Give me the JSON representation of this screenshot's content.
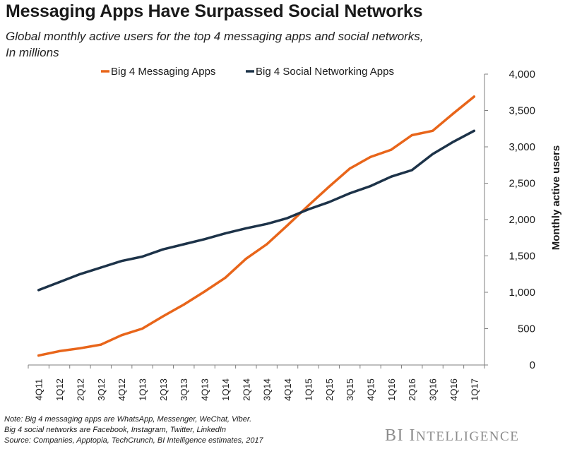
{
  "header": {
    "title": "Messaging Apps Have Surpassed Social Networks",
    "subtitle_line1": "Global monthly active users for the top 4 messaging apps and social networks,",
    "subtitle_line2": "In millions"
  },
  "footer": {
    "note1": "Note: Big 4 messaging apps are WhatsApp, Messenger, WeChat, Viber.",
    "note2": "Big 4 social networks are Facebook, Instagram, Twitter, LinkedIn",
    "source": "Source: Companies,  Apptopia, TechCrunch,  BI Intelligence estimates, 2017",
    "brand_bi": "BI ",
    "brand_i": "I",
    "brand_rest": "NTELLIGENCE"
  },
  "colors": {
    "messaging": "#E8651A",
    "social": "#1D3349",
    "axis": "#7f7f7f",
    "brand": "#8c8c8c"
  },
  "chart_data": {
    "type": "line",
    "title": "",
    "xlabel": "",
    "ylabel": "Monthly active users",
    "ylim": [
      0,
      4000
    ],
    "yticks": [
      "0",
      "500",
      "1,000",
      "1,500",
      "2,000",
      "2,500",
      "3,000",
      "3,500",
      "4,000"
    ],
    "ytick_values": [
      0,
      500,
      1000,
      1500,
      2000,
      2500,
      3000,
      3500,
      4000
    ],
    "grid": false,
    "legend_position": "top",
    "categories": [
      "4Q11",
      "1Q12",
      "2Q12",
      "3Q12",
      "4Q12",
      "1Q13",
      "2Q13",
      "3Q13",
      "4Q13",
      "1Q14",
      "2Q14",
      "3Q14",
      "4Q14",
      "1Q15",
      "2Q15",
      "3Q15",
      "4Q15",
      "1Q16",
      "2Q16",
      "3Q16",
      "4Q16",
      "1Q17"
    ],
    "series": [
      {
        "name": "Big 4 Messaging Apps",
        "color": "#E8651A",
        "values": [
          130,
          190,
          230,
          280,
          410,
          500,
          670,
          830,
          1010,
          1200,
          1460,
          1660,
          1920,
          2190,
          2450,
          2700,
          2860,
          2960,
          3160,
          3220,
          3460,
          3690
        ]
      },
      {
        "name": "Big 4 Social Networking Apps",
        "color": "#1D3349",
        "values": [
          1030,
          1140,
          1250,
          1340,
          1430,
          1490,
          1590,
          1660,
          1730,
          1810,
          1880,
          1940,
          2020,
          2140,
          2240,
          2360,
          2460,
          2590,
          2680,
          2900,
          3070,
          3220
        ]
      }
    ]
  }
}
